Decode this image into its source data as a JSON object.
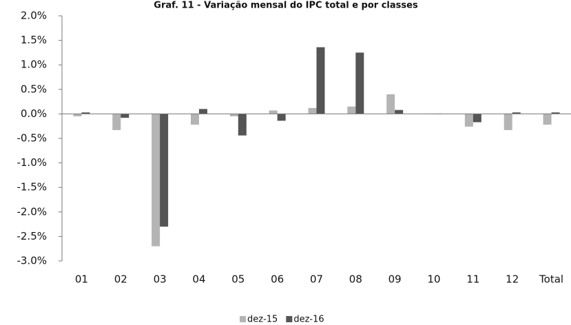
{
  "chart_data": {
    "type": "bar",
    "title": "Graf. 11 - Variação mensal do IPC total e por classes",
    "categories": [
      "01",
      "02",
      "03",
      "04",
      "05",
      "06",
      "07",
      "08",
      "09",
      "10",
      "11",
      "12",
      "Total"
    ],
    "series": [
      {
        "name": "dez-15",
        "color": "#b4b4b4",
        "values": [
          -0.05,
          -0.33,
          -2.7,
          -0.22,
          -0.05,
          0.07,
          0.12,
          0.15,
          0.4,
          0,
          -0.26,
          -0.33,
          -0.22
        ]
      },
      {
        "name": "dez-16",
        "color": "#555555",
        "values": [
          0.03,
          -0.08,
          -2.3,
          0.1,
          -0.44,
          -0.14,
          1.36,
          1.25,
          0.08,
          0,
          -0.17,
          0.03,
          0.03
        ]
      }
    ],
    "ylim": [
      -3.0,
      2.0
    ],
    "yticks": [
      {
        "value": 2.0,
        "label": "2.0%"
      },
      {
        "value": 1.5,
        "label": "1.5%"
      },
      {
        "value": 1.0,
        "label": "1.0%"
      },
      {
        "value": 0.5,
        "label": "0.5%"
      },
      {
        "value": 0.0,
        "label": "0.0%"
      },
      {
        "value": -0.5,
        "label": "-0.5%"
      },
      {
        "value": -1.0,
        "label": "-1.0%"
      },
      {
        "value": -1.5,
        "label": "-1.5%"
      },
      {
        "value": -2.0,
        "label": "-2.0%"
      },
      {
        "value": -2.5,
        "label": "-2.5%"
      },
      {
        "value": -3.0,
        "label": "-3.0%"
      }
    ],
    "legend": "bottom"
  }
}
